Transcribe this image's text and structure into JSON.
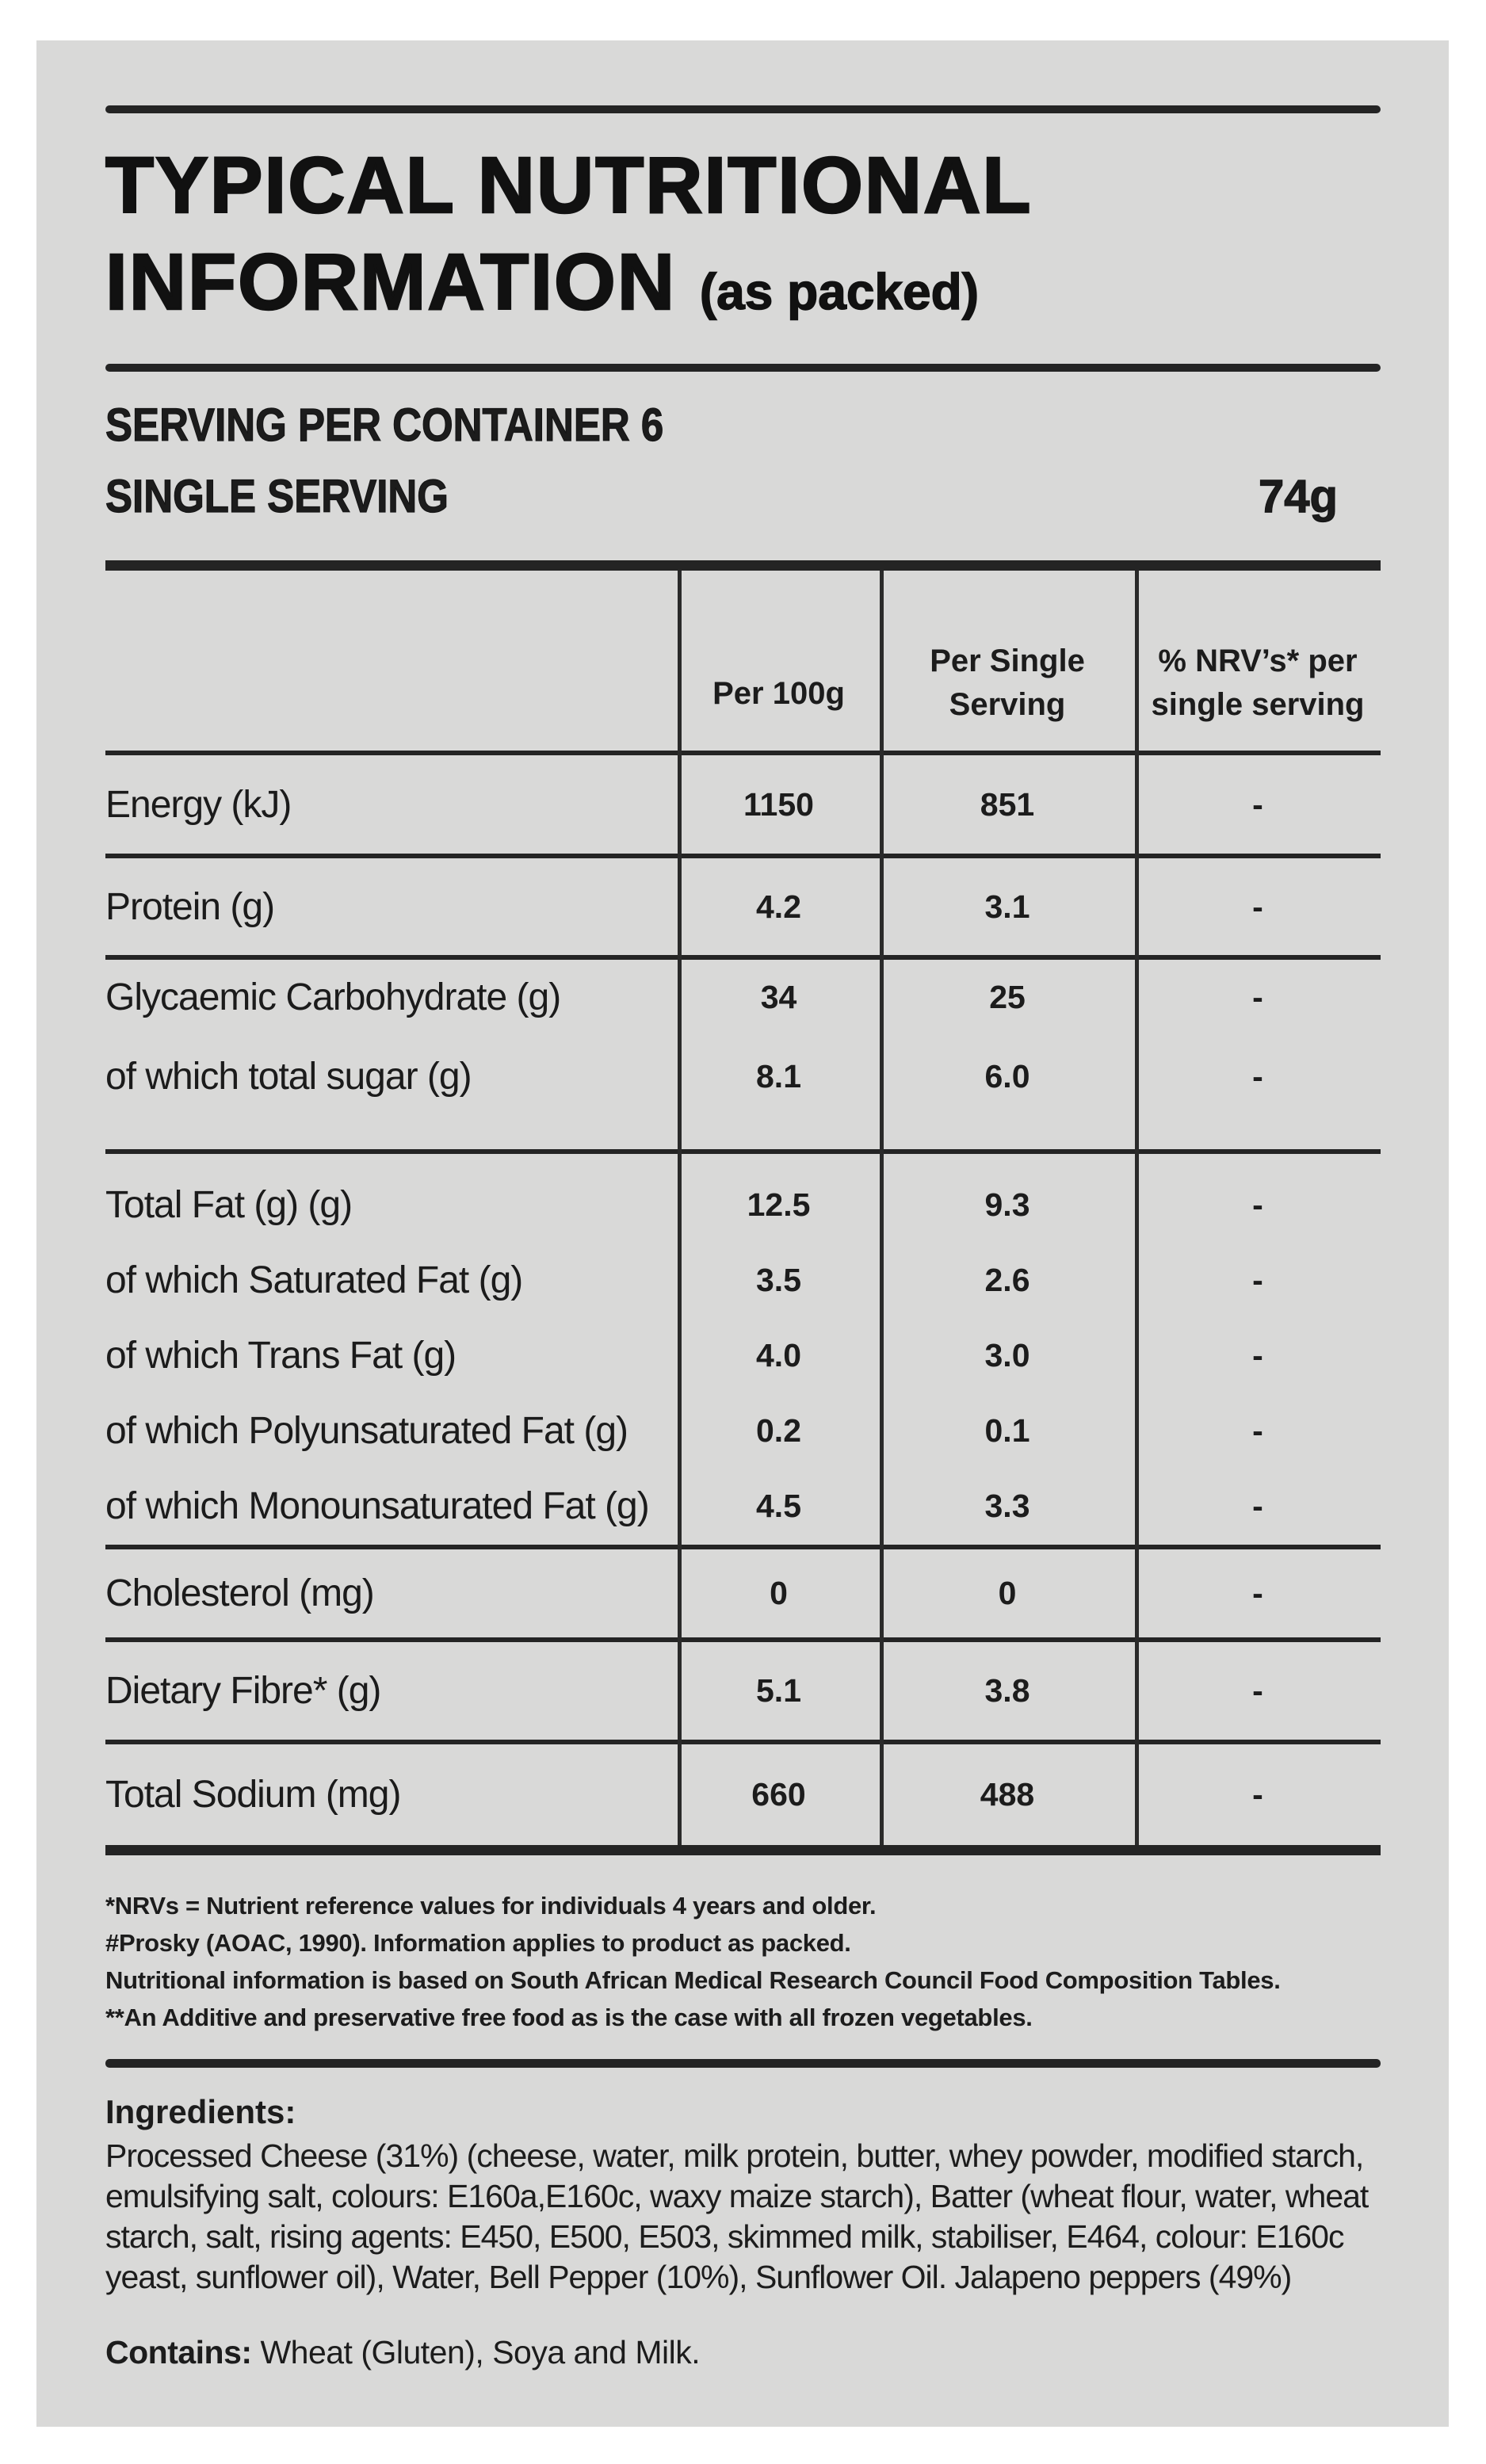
{
  "colors": {
    "card_bg": "#d9d9d8",
    "ink": "#1c1c1c"
  },
  "header": {
    "title_line1": "TYPICAL NUTRITIONAL",
    "title_line2": "INFORMATION",
    "title_suffix": "(as packed)",
    "serving_per_container": "SERVING PER CONTAINER 6",
    "single_serving_label": "SINGLE SERVING",
    "single_serving_value": "74g"
  },
  "table": {
    "columns": {
      "col1": "Per 100g",
      "col2": "Per Single Serving",
      "col3": "% NRV’s* per single serving"
    },
    "rows": [
      {
        "label": "Energy (kJ)",
        "per_100g": "1150",
        "per_serving": "851",
        "nrv": "-"
      },
      {
        "label": "Protein (g)",
        "per_100g": "4.2",
        "per_serving": "3.1",
        "nrv": "-"
      },
      {
        "label": "Glycaemic Carbohydrate (g)",
        "per_100g": "34",
        "per_serving": "25",
        "nrv": "-"
      },
      {
        "label": "of which total sugar (g)",
        "per_100g": "8.1",
        "per_serving": "6.0",
        "nrv": "-"
      },
      {
        "label": "Total Fat (g) (g)",
        "per_100g": "12.5",
        "per_serving": "9.3",
        "nrv": "-"
      },
      {
        "label": "of which Saturated Fat (g)",
        "per_100g": "3.5",
        "per_serving": "2.6",
        "nrv": "-"
      },
      {
        "label": "of which Trans Fat (g)",
        "per_100g": "4.0",
        "per_serving": "3.0",
        "nrv": "-"
      },
      {
        "label": "of which Polyunsaturated Fat (g)",
        "per_100g": "0.2",
        "per_serving": "0.1",
        "nrv": "-"
      },
      {
        "label": "of which Monounsaturated Fat (g)",
        "per_100g": "4.5",
        "per_serving": "3.3",
        "nrv": "-"
      },
      {
        "label": "Cholesterol (mg)",
        "per_100g": "0",
        "per_serving": "0",
        "nrv": "-"
      },
      {
        "label": "Dietary Fibre* (g)",
        "per_100g": "5.1",
        "per_serving": "3.8",
        "nrv": "-"
      },
      {
        "label": "Total Sodium (mg)",
        "per_100g": "660",
        "per_serving": "488",
        "nrv": "-"
      }
    ]
  },
  "footnotes": [
    "*NRVs = Nutrient reference values for individuals 4 years and older.",
    "#Prosky (AOAC, 1990). Information applies to product as packed.",
    "Nutritional information is based on South African Medical Research Council Food Composition Tables.",
    "**An Additive and preservative free food as is the case with all frozen vegetables."
  ],
  "ingredients": {
    "heading": "Ingredients:",
    "body": "Processed Cheese (31%) (cheese, water, milk protein, butter, whey powder, modified starch, emulsifying salt, colours: E160a,E160c, waxy maize starch), Batter (wheat flour, water, wheat starch, salt, rising agents: E450, E500, E503, skimmed milk, stabiliser, E464, colour: E160c yeast, sunflower oil), Water, Bell Pepper (10%), Sunflower Oil. Jalapeno peppers (49%)",
    "contains_label": "Contains:",
    "contains_value": " Wheat (Gluten), Soya and Milk."
  }
}
